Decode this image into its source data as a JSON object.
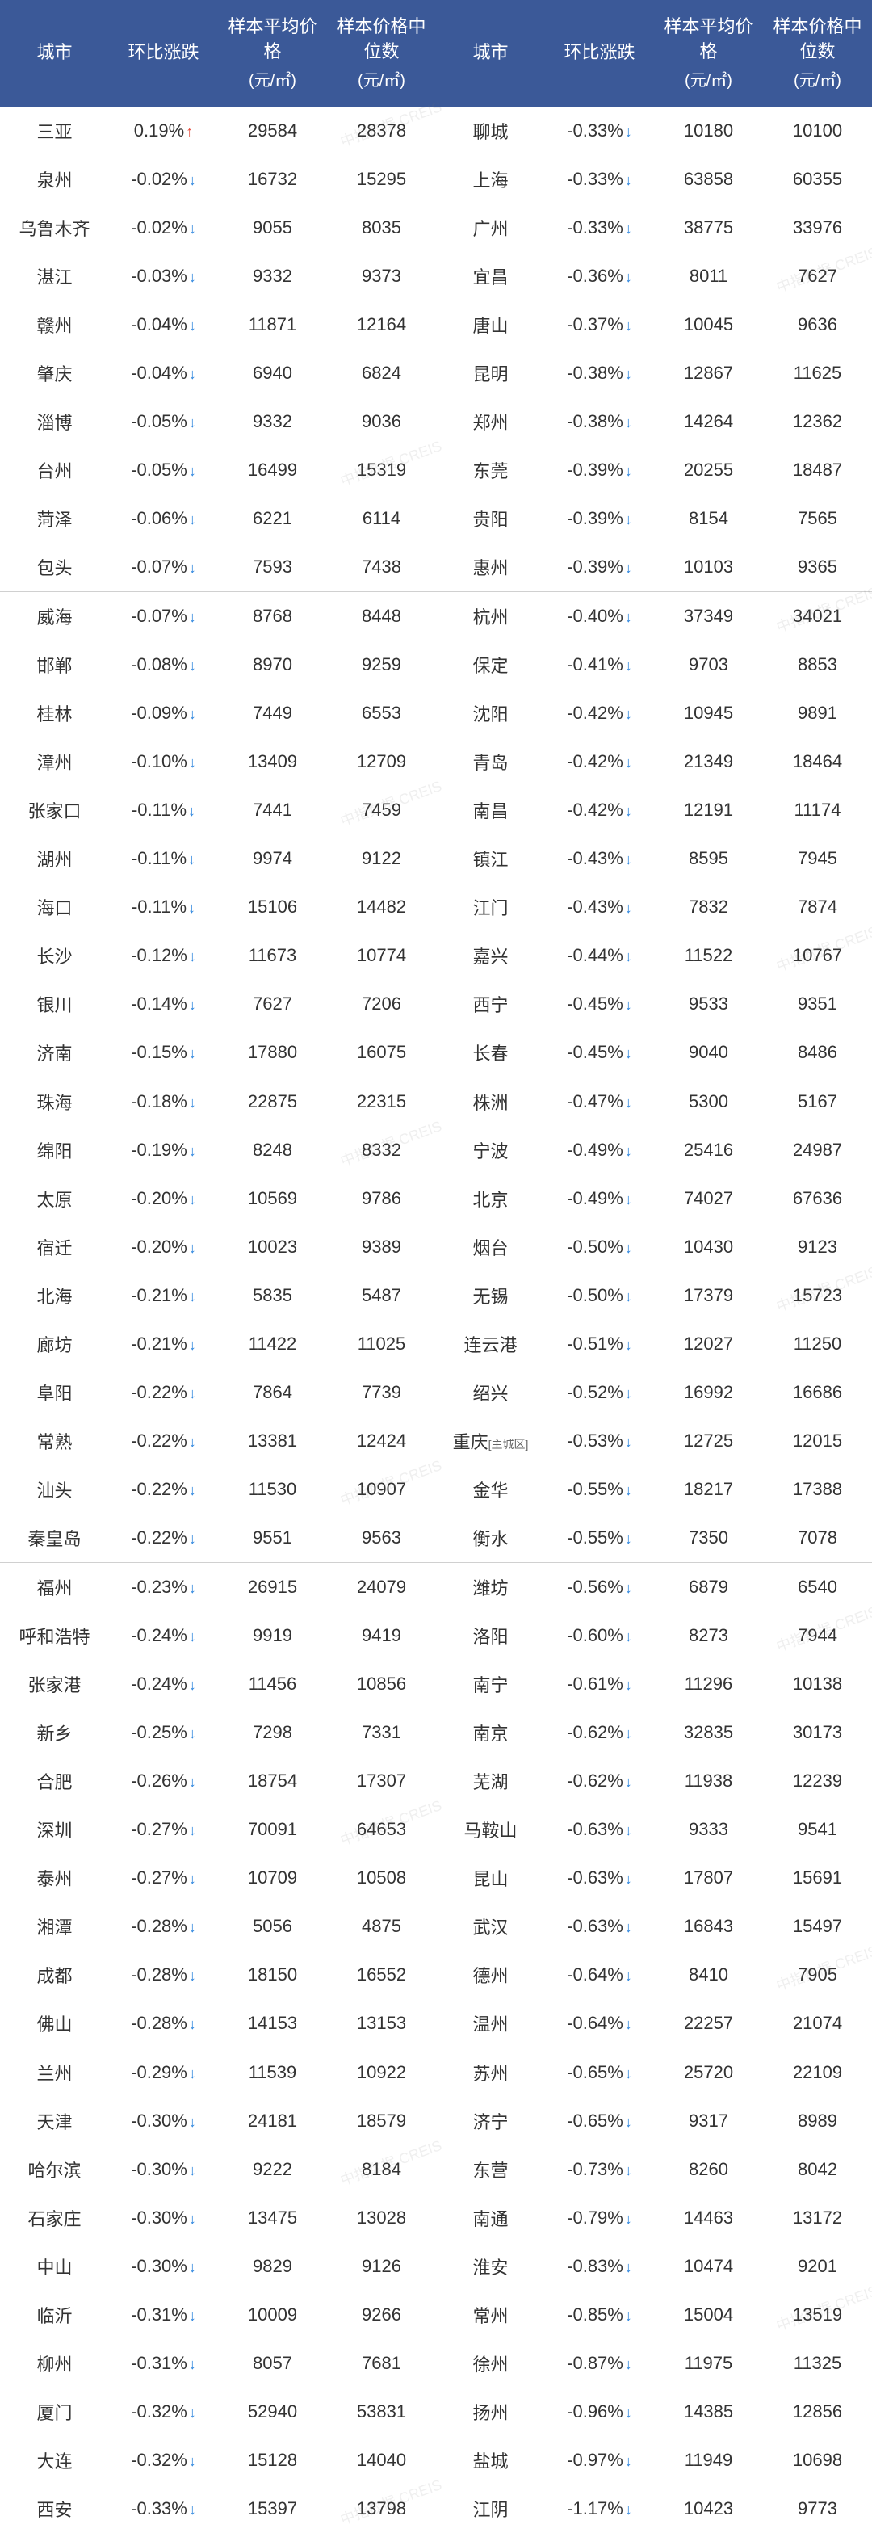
{
  "header": {
    "city": "城市",
    "change": "环比涨跌",
    "avg": "样本平均价格",
    "median": "样本价格中位数",
    "unit": "(元/㎡)"
  },
  "watermark": "中指数据 CREIS",
  "colors": {
    "header_bg": "#3b5998",
    "header_fg": "#ffffff",
    "up_arrow": "#e74c3c",
    "down_arrow": "#2e86de",
    "border": "#d0d0d0",
    "text": "#333333"
  },
  "groups": [
    [
      {
        "l": {
          "c": "三亚",
          "ch": "0.19%",
          "d": "up",
          "a": "29584",
          "m": "28378"
        },
        "r": {
          "c": "聊城",
          "ch": "-0.33%",
          "d": "down",
          "a": "10180",
          "m": "10100"
        }
      },
      {
        "l": {
          "c": "泉州",
          "ch": "-0.02%",
          "d": "down",
          "a": "16732",
          "m": "15295"
        },
        "r": {
          "c": "上海",
          "ch": "-0.33%",
          "d": "down",
          "a": "63858",
          "m": "60355"
        }
      },
      {
        "l": {
          "c": "乌鲁木齐",
          "ch": "-0.02%",
          "d": "down",
          "a": "9055",
          "m": "8035"
        },
        "r": {
          "c": "广州",
          "ch": "-0.33%",
          "d": "down",
          "a": "38775",
          "m": "33976"
        }
      },
      {
        "l": {
          "c": "湛江",
          "ch": "-0.03%",
          "d": "down",
          "a": "9332",
          "m": "9373"
        },
        "r": {
          "c": "宜昌",
          "ch": "-0.36%",
          "d": "down",
          "a": "8011",
          "m": "7627"
        }
      },
      {
        "l": {
          "c": "赣州",
          "ch": "-0.04%",
          "d": "down",
          "a": "11871",
          "m": "12164"
        },
        "r": {
          "c": "唐山",
          "ch": "-0.37%",
          "d": "down",
          "a": "10045",
          "m": "9636"
        }
      },
      {
        "l": {
          "c": "肇庆",
          "ch": "-0.04%",
          "d": "down",
          "a": "6940",
          "m": "6824"
        },
        "r": {
          "c": "昆明",
          "ch": "-0.38%",
          "d": "down",
          "a": "12867",
          "m": "11625"
        }
      },
      {
        "l": {
          "c": "淄博",
          "ch": "-0.05%",
          "d": "down",
          "a": "9332",
          "m": "9036"
        },
        "r": {
          "c": "郑州",
          "ch": "-0.38%",
          "d": "down",
          "a": "14264",
          "m": "12362"
        }
      },
      {
        "l": {
          "c": "台州",
          "ch": "-0.05%",
          "d": "down",
          "a": "16499",
          "m": "15319"
        },
        "r": {
          "c": "东莞",
          "ch": "-0.39%",
          "d": "down",
          "a": "20255",
          "m": "18487"
        }
      },
      {
        "l": {
          "c": "菏泽",
          "ch": "-0.06%",
          "d": "down",
          "a": "6221",
          "m": "6114"
        },
        "r": {
          "c": "贵阳",
          "ch": "-0.39%",
          "d": "down",
          "a": "8154",
          "m": "7565"
        }
      },
      {
        "l": {
          "c": "包头",
          "ch": "-0.07%",
          "d": "down",
          "a": "7593",
          "m": "7438"
        },
        "r": {
          "c": "惠州",
          "ch": "-0.39%",
          "d": "down",
          "a": "10103",
          "m": "9365"
        }
      }
    ],
    [
      {
        "l": {
          "c": "威海",
          "ch": "-0.07%",
          "d": "down",
          "a": "8768",
          "m": "8448"
        },
        "r": {
          "c": "杭州",
          "ch": "-0.40%",
          "d": "down",
          "a": "37349",
          "m": "34021"
        }
      },
      {
        "l": {
          "c": "邯郸",
          "ch": "-0.08%",
          "d": "down",
          "a": "8970",
          "m": "9259"
        },
        "r": {
          "c": "保定",
          "ch": "-0.41%",
          "d": "down",
          "a": "9703",
          "m": "8853"
        }
      },
      {
        "l": {
          "c": "桂林",
          "ch": "-0.09%",
          "d": "down",
          "a": "7449",
          "m": "6553"
        },
        "r": {
          "c": "沈阳",
          "ch": "-0.42%",
          "d": "down",
          "a": "10945",
          "m": "9891"
        }
      },
      {
        "l": {
          "c": "漳州",
          "ch": "-0.10%",
          "d": "down",
          "a": "13409",
          "m": "12709"
        },
        "r": {
          "c": "青岛",
          "ch": "-0.42%",
          "d": "down",
          "a": "21349",
          "m": "18464"
        }
      },
      {
        "l": {
          "c": "张家口",
          "ch": "-0.11%",
          "d": "down",
          "a": "7441",
          "m": "7459"
        },
        "r": {
          "c": "南昌",
          "ch": "-0.42%",
          "d": "down",
          "a": "12191",
          "m": "11174"
        }
      },
      {
        "l": {
          "c": "湖州",
          "ch": "-0.11%",
          "d": "down",
          "a": "9974",
          "m": "9122"
        },
        "r": {
          "c": "镇江",
          "ch": "-0.43%",
          "d": "down",
          "a": "8595",
          "m": "7945"
        }
      },
      {
        "l": {
          "c": "海口",
          "ch": "-0.11%",
          "d": "down",
          "a": "15106",
          "m": "14482"
        },
        "r": {
          "c": "江门",
          "ch": "-0.43%",
          "d": "down",
          "a": "7832",
          "m": "7874"
        }
      },
      {
        "l": {
          "c": "长沙",
          "ch": "-0.12%",
          "d": "down",
          "a": "11673",
          "m": "10774"
        },
        "r": {
          "c": "嘉兴",
          "ch": "-0.44%",
          "d": "down",
          "a": "11522",
          "m": "10767"
        }
      },
      {
        "l": {
          "c": "银川",
          "ch": "-0.14%",
          "d": "down",
          "a": "7627",
          "m": "7206"
        },
        "r": {
          "c": "西宁",
          "ch": "-0.45%",
          "d": "down",
          "a": "9533",
          "m": "9351"
        }
      },
      {
        "l": {
          "c": "济南",
          "ch": "-0.15%",
          "d": "down",
          "a": "17880",
          "m": "16075"
        },
        "r": {
          "c": "长春",
          "ch": "-0.45%",
          "d": "down",
          "a": "9040",
          "m": "8486"
        }
      }
    ],
    [
      {
        "l": {
          "c": "珠海",
          "ch": "-0.18%",
          "d": "down",
          "a": "22875",
          "m": "22315"
        },
        "r": {
          "c": "株洲",
          "ch": "-0.47%",
          "d": "down",
          "a": "5300",
          "m": "5167"
        }
      },
      {
        "l": {
          "c": "绵阳",
          "ch": "-0.19%",
          "d": "down",
          "a": "8248",
          "m": "8332"
        },
        "r": {
          "c": "宁波",
          "ch": "-0.49%",
          "d": "down",
          "a": "25416",
          "m": "24987"
        }
      },
      {
        "l": {
          "c": "太原",
          "ch": "-0.20%",
          "d": "down",
          "a": "10569",
          "m": "9786"
        },
        "r": {
          "c": "北京",
          "ch": "-0.49%",
          "d": "down",
          "a": "74027",
          "m": "67636"
        }
      },
      {
        "l": {
          "c": "宿迁",
          "ch": "-0.20%",
          "d": "down",
          "a": "10023",
          "m": "9389"
        },
        "r": {
          "c": "烟台",
          "ch": "-0.50%",
          "d": "down",
          "a": "10430",
          "m": "9123"
        }
      },
      {
        "l": {
          "c": "北海",
          "ch": "-0.21%",
          "d": "down",
          "a": "5835",
          "m": "5487"
        },
        "r": {
          "c": "无锡",
          "ch": "-0.50%",
          "d": "down",
          "a": "17379",
          "m": "15723"
        }
      },
      {
        "l": {
          "c": "廊坊",
          "ch": "-0.21%",
          "d": "down",
          "a": "11422",
          "m": "11025"
        },
        "r": {
          "c": "连云港",
          "ch": "-0.51%",
          "d": "down",
          "a": "12027",
          "m": "11250"
        }
      },
      {
        "l": {
          "c": "阜阳",
          "ch": "-0.22%",
          "d": "down",
          "a": "7864",
          "m": "7739"
        },
        "r": {
          "c": "绍兴",
          "ch": "-0.52%",
          "d": "down",
          "a": "16992",
          "m": "16686"
        }
      },
      {
        "l": {
          "c": "常熟",
          "ch": "-0.22%",
          "d": "down",
          "a": "13381",
          "m": "12424"
        },
        "r": {
          "c": "重庆",
          "sub": "[主城区]",
          "ch": "-0.53%",
          "d": "down",
          "a": "12725",
          "m": "12015"
        }
      },
      {
        "l": {
          "c": "汕头",
          "ch": "-0.22%",
          "d": "down",
          "a": "11530",
          "m": "10907"
        },
        "r": {
          "c": "金华",
          "ch": "-0.55%",
          "d": "down",
          "a": "18217",
          "m": "17388"
        }
      },
      {
        "l": {
          "c": "秦皇岛",
          "ch": "-0.22%",
          "d": "down",
          "a": "9551",
          "m": "9563"
        },
        "r": {
          "c": "衡水",
          "ch": "-0.55%",
          "d": "down",
          "a": "7350",
          "m": "7078"
        }
      }
    ],
    [
      {
        "l": {
          "c": "福州",
          "ch": "-0.23%",
          "d": "down",
          "a": "26915",
          "m": "24079"
        },
        "r": {
          "c": "潍坊",
          "ch": "-0.56%",
          "d": "down",
          "a": "6879",
          "m": "6540"
        }
      },
      {
        "l": {
          "c": "呼和浩特",
          "ch": "-0.24%",
          "d": "down",
          "a": "9919",
          "m": "9419"
        },
        "r": {
          "c": "洛阳",
          "ch": "-0.60%",
          "d": "down",
          "a": "8273",
          "m": "7944"
        }
      },
      {
        "l": {
          "c": "张家港",
          "ch": "-0.24%",
          "d": "down",
          "a": "11456",
          "m": "10856"
        },
        "r": {
          "c": "南宁",
          "ch": "-0.61%",
          "d": "down",
          "a": "11296",
          "m": "10138"
        }
      },
      {
        "l": {
          "c": "新乡",
          "ch": "-0.25%",
          "d": "down",
          "a": "7298",
          "m": "7331"
        },
        "r": {
          "c": "南京",
          "ch": "-0.62%",
          "d": "down",
          "a": "32835",
          "m": "30173"
        }
      },
      {
        "l": {
          "c": "合肥",
          "ch": "-0.26%",
          "d": "down",
          "a": "18754",
          "m": "17307"
        },
        "r": {
          "c": "芜湖",
          "ch": "-0.62%",
          "d": "down",
          "a": "11938",
          "m": "12239"
        }
      },
      {
        "l": {
          "c": "深圳",
          "ch": "-0.27%",
          "d": "down",
          "a": "70091",
          "m": "64653"
        },
        "r": {
          "c": "马鞍山",
          "ch": "-0.63%",
          "d": "down",
          "a": "9333",
          "m": "9541"
        }
      },
      {
        "l": {
          "c": "泰州",
          "ch": "-0.27%",
          "d": "down",
          "a": "10709",
          "m": "10508"
        },
        "r": {
          "c": "昆山",
          "ch": "-0.63%",
          "d": "down",
          "a": "17807",
          "m": "15691"
        }
      },
      {
        "l": {
          "c": "湘潭",
          "ch": "-0.28%",
          "d": "down",
          "a": "5056",
          "m": "4875"
        },
        "r": {
          "c": "武汉",
          "ch": "-0.63%",
          "d": "down",
          "a": "16843",
          "m": "15497"
        }
      },
      {
        "l": {
          "c": "成都",
          "ch": "-0.28%",
          "d": "down",
          "a": "18150",
          "m": "16552"
        },
        "r": {
          "c": "德州",
          "ch": "-0.64%",
          "d": "down",
          "a": "8410",
          "m": "7905"
        }
      },
      {
        "l": {
          "c": "佛山",
          "ch": "-0.28%",
          "d": "down",
          "a": "14153",
          "m": "13153"
        },
        "r": {
          "c": "温州",
          "ch": "-0.64%",
          "d": "down",
          "a": "22257",
          "m": "21074"
        }
      }
    ],
    [
      {
        "l": {
          "c": "兰州",
          "ch": "-0.29%",
          "d": "down",
          "a": "11539",
          "m": "10922"
        },
        "r": {
          "c": "苏州",
          "ch": "-0.65%",
          "d": "down",
          "a": "25720",
          "m": "22109"
        }
      },
      {
        "l": {
          "c": "天津",
          "ch": "-0.30%",
          "d": "down",
          "a": "24181",
          "m": "18579"
        },
        "r": {
          "c": "济宁",
          "ch": "-0.65%",
          "d": "down",
          "a": "9317",
          "m": "8989"
        }
      },
      {
        "l": {
          "c": "哈尔滨",
          "ch": "-0.30%",
          "d": "down",
          "a": "9222",
          "m": "8184"
        },
        "r": {
          "c": "东营",
          "ch": "-0.73%",
          "d": "down",
          "a": "8260",
          "m": "8042"
        }
      },
      {
        "l": {
          "c": "石家庄",
          "ch": "-0.30%",
          "d": "down",
          "a": "13475",
          "m": "13028"
        },
        "r": {
          "c": "南通",
          "ch": "-0.79%",
          "d": "down",
          "a": "14463",
          "m": "13172"
        }
      },
      {
        "l": {
          "c": "中山",
          "ch": "-0.30%",
          "d": "down",
          "a": "9829",
          "m": "9126"
        },
        "r": {
          "c": "淮安",
          "ch": "-0.83%",
          "d": "down",
          "a": "10474",
          "m": "9201"
        }
      },
      {
        "l": {
          "c": "临沂",
          "ch": "-0.31%",
          "d": "down",
          "a": "10009",
          "m": "9266"
        },
        "r": {
          "c": "常州",
          "ch": "-0.85%",
          "d": "down",
          "a": "15004",
          "m": "13519"
        }
      },
      {
        "l": {
          "c": "柳州",
          "ch": "-0.31%",
          "d": "down",
          "a": "8057",
          "m": "7681"
        },
        "r": {
          "c": "徐州",
          "ch": "-0.87%",
          "d": "down",
          "a": "11975",
          "m": "11325"
        }
      },
      {
        "l": {
          "c": "厦门",
          "ch": "-0.32%",
          "d": "down",
          "a": "52940",
          "m": "53831"
        },
        "r": {
          "c": "扬州",
          "ch": "-0.96%",
          "d": "down",
          "a": "14385",
          "m": "12856"
        }
      },
      {
        "l": {
          "c": "大连",
          "ch": "-0.32%",
          "d": "down",
          "a": "15128",
          "m": "14040"
        },
        "r": {
          "c": "盐城",
          "ch": "-0.97%",
          "d": "down",
          "a": "11949",
          "m": "10698"
        }
      },
      {
        "l": {
          "c": "西安",
          "ch": "-0.33%",
          "d": "down",
          "a": "15397",
          "m": "13798"
        },
        "r": {
          "c": "江阴",
          "ch": "-1.17%",
          "d": "down",
          "a": "10423",
          "m": "9773"
        }
      }
    ]
  ]
}
